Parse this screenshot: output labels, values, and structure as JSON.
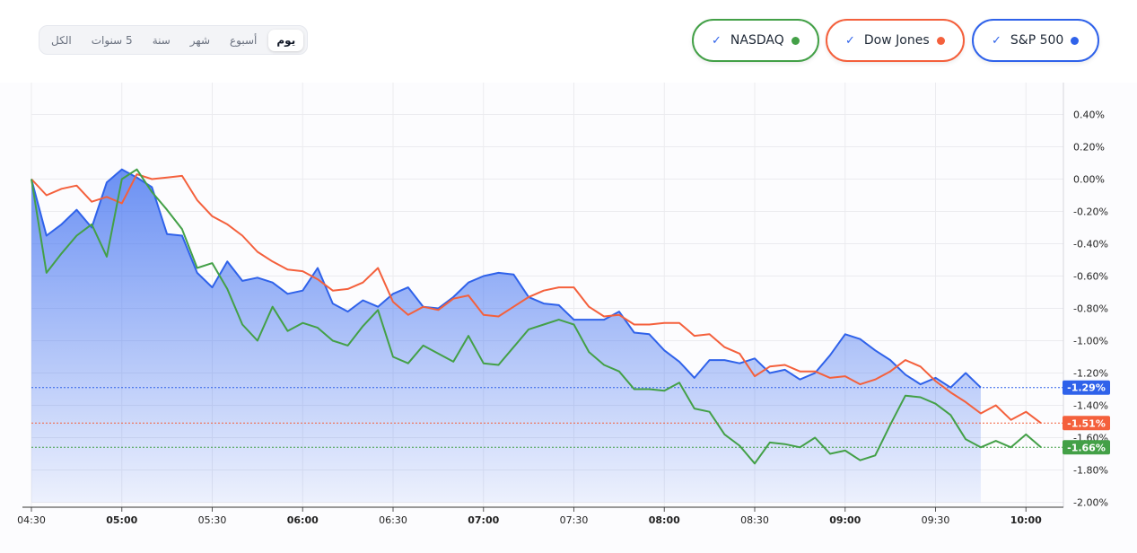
{
  "range_selector": {
    "options": [
      "الكل",
      "5 سنوات",
      "سنة",
      "شهر",
      "أسبوع",
      "يوم"
    ],
    "active": "يوم"
  },
  "legend": [
    {
      "name": "NASDAQ",
      "color": "#43a047",
      "check": "✓"
    },
    {
      "name": "Dow Jones",
      "color": "#f4603c",
      "check": "✓"
    },
    {
      "name": "S&P 500",
      "color": "#2f62ea",
      "check": "✓"
    }
  ],
  "chart_data": {
    "type": "line",
    "x_ticks": [
      "04:30",
      "05:00",
      "05:30",
      "06:00",
      "06:30",
      "07:00",
      "07:30",
      "08:00",
      "08:30",
      "09:00",
      "09:30",
      "10:00"
    ],
    "bold_ticks": [
      "05:00",
      "06:00",
      "07:00",
      "08:00",
      "09:00",
      "10:00"
    ],
    "x_minutes_start": "04:30",
    "x_step_minutes": 5,
    "ylim": [
      -2.0,
      0.5
    ],
    "y_ticks": [
      "0.40%",
      "0.20%",
      "0.00%",
      "-0.20%",
      "-0.40%",
      "-0.60%",
      "-0.80%",
      "-1.00%",
      "-1.20%",
      "-1.40%",
      "-1.60%",
      "-1.80%",
      "-2.00%"
    ],
    "y_tick_values": [
      0.4,
      0.2,
      0.0,
      -0.2,
      -0.4,
      -0.6,
      -0.8,
      -1.0,
      -1.2,
      -1.4,
      -1.6,
      -1.8,
      -2.0
    ],
    "series": [
      {
        "name": "S&P 500",
        "color": "#2f62ea",
        "last_label": "-1.29%",
        "values": [
          0.0,
          -0.35,
          -0.28,
          -0.19,
          -0.3,
          -0.02,
          0.06,
          0.01,
          -0.05,
          -0.34,
          -0.35,
          -0.58,
          -0.67,
          -0.51,
          -0.63,
          -0.61,
          -0.64,
          -0.71,
          -0.69,
          -0.55,
          -0.77,
          -0.82,
          -0.75,
          -0.79,
          -0.71,
          -0.67,
          -0.79,
          -0.8,
          -0.73,
          -0.64,
          -0.6,
          -0.58,
          -0.59,
          -0.73,
          -0.77,
          -0.78,
          -0.87,
          -0.87,
          -0.87,
          -0.82,
          -0.95,
          -0.96,
          -1.06,
          -1.13,
          -1.23,
          -1.12,
          -1.12,
          -1.14,
          -1.11,
          -1.2,
          -1.18,
          -1.24,
          -1.2,
          -1.09,
          -0.96,
          -0.99,
          -1.06,
          -1.12,
          -1.21,
          -1.27,
          -1.23,
          -1.29,
          -1.2,
          -1.29
        ]
      },
      {
        "name": "Dow Jones",
        "color": "#f4603c",
        "last_label": "-1.51%",
        "values": [
          0.0,
          -0.1,
          -0.06,
          -0.04,
          -0.14,
          -0.11,
          -0.15,
          0.03,
          0.0,
          0.01,
          0.02,
          -0.13,
          -0.23,
          -0.28,
          -0.35,
          -0.45,
          -0.51,
          -0.56,
          -0.57,
          -0.62,
          -0.69,
          -0.68,
          -0.64,
          -0.55,
          -0.76,
          -0.84,
          -0.79,
          -0.81,
          -0.74,
          -0.72,
          -0.84,
          -0.85,
          -0.79,
          -0.73,
          -0.69,
          -0.67,
          -0.67,
          -0.79,
          -0.85,
          -0.84,
          -0.9,
          -0.9,
          -0.89,
          -0.89,
          -0.97,
          -0.96,
          -1.04,
          -1.08,
          -1.22,
          -1.16,
          -1.15,
          -1.19,
          -1.19,
          -1.23,
          -1.22,
          -1.27,
          -1.24,
          -1.19,
          -1.12,
          -1.16,
          -1.25,
          -1.32,
          -1.38,
          -1.45,
          -1.4,
          -1.49,
          -1.44,
          -1.51
        ]
      },
      {
        "name": "NASDAQ",
        "color": "#43a047",
        "last_label": "-1.66%",
        "values": [
          0.0,
          -0.58,
          -0.46,
          -0.35,
          -0.28,
          -0.48,
          0.0,
          0.06,
          -0.08,
          -0.19,
          -0.31,
          -0.55,
          -0.52,
          -0.68,
          -0.9,
          -1.0,
          -0.79,
          -0.94,
          -0.89,
          -0.92,
          -1.0,
          -1.03,
          -0.91,
          -0.81,
          -1.1,
          -1.14,
          -1.03,
          -1.08,
          -1.13,
          -0.97,
          -1.14,
          -1.15,
          -1.04,
          -0.93,
          -0.9,
          -0.87,
          -0.9,
          -1.07,
          -1.15,
          -1.19,
          -1.3,
          -1.3,
          -1.31,
          -1.26,
          -1.42,
          -1.44,
          -1.58,
          -1.65,
          -1.76,
          -1.63,
          -1.64,
          -1.66,
          -1.6,
          -1.7,
          -1.68,
          -1.74,
          -1.71,
          -1.52,
          -1.34,
          -1.35,
          -1.39,
          -1.46,
          -1.61,
          -1.66,
          -1.62,
          -1.66,
          -1.58,
          -1.66
        ]
      }
    ],
    "grid": true
  }
}
